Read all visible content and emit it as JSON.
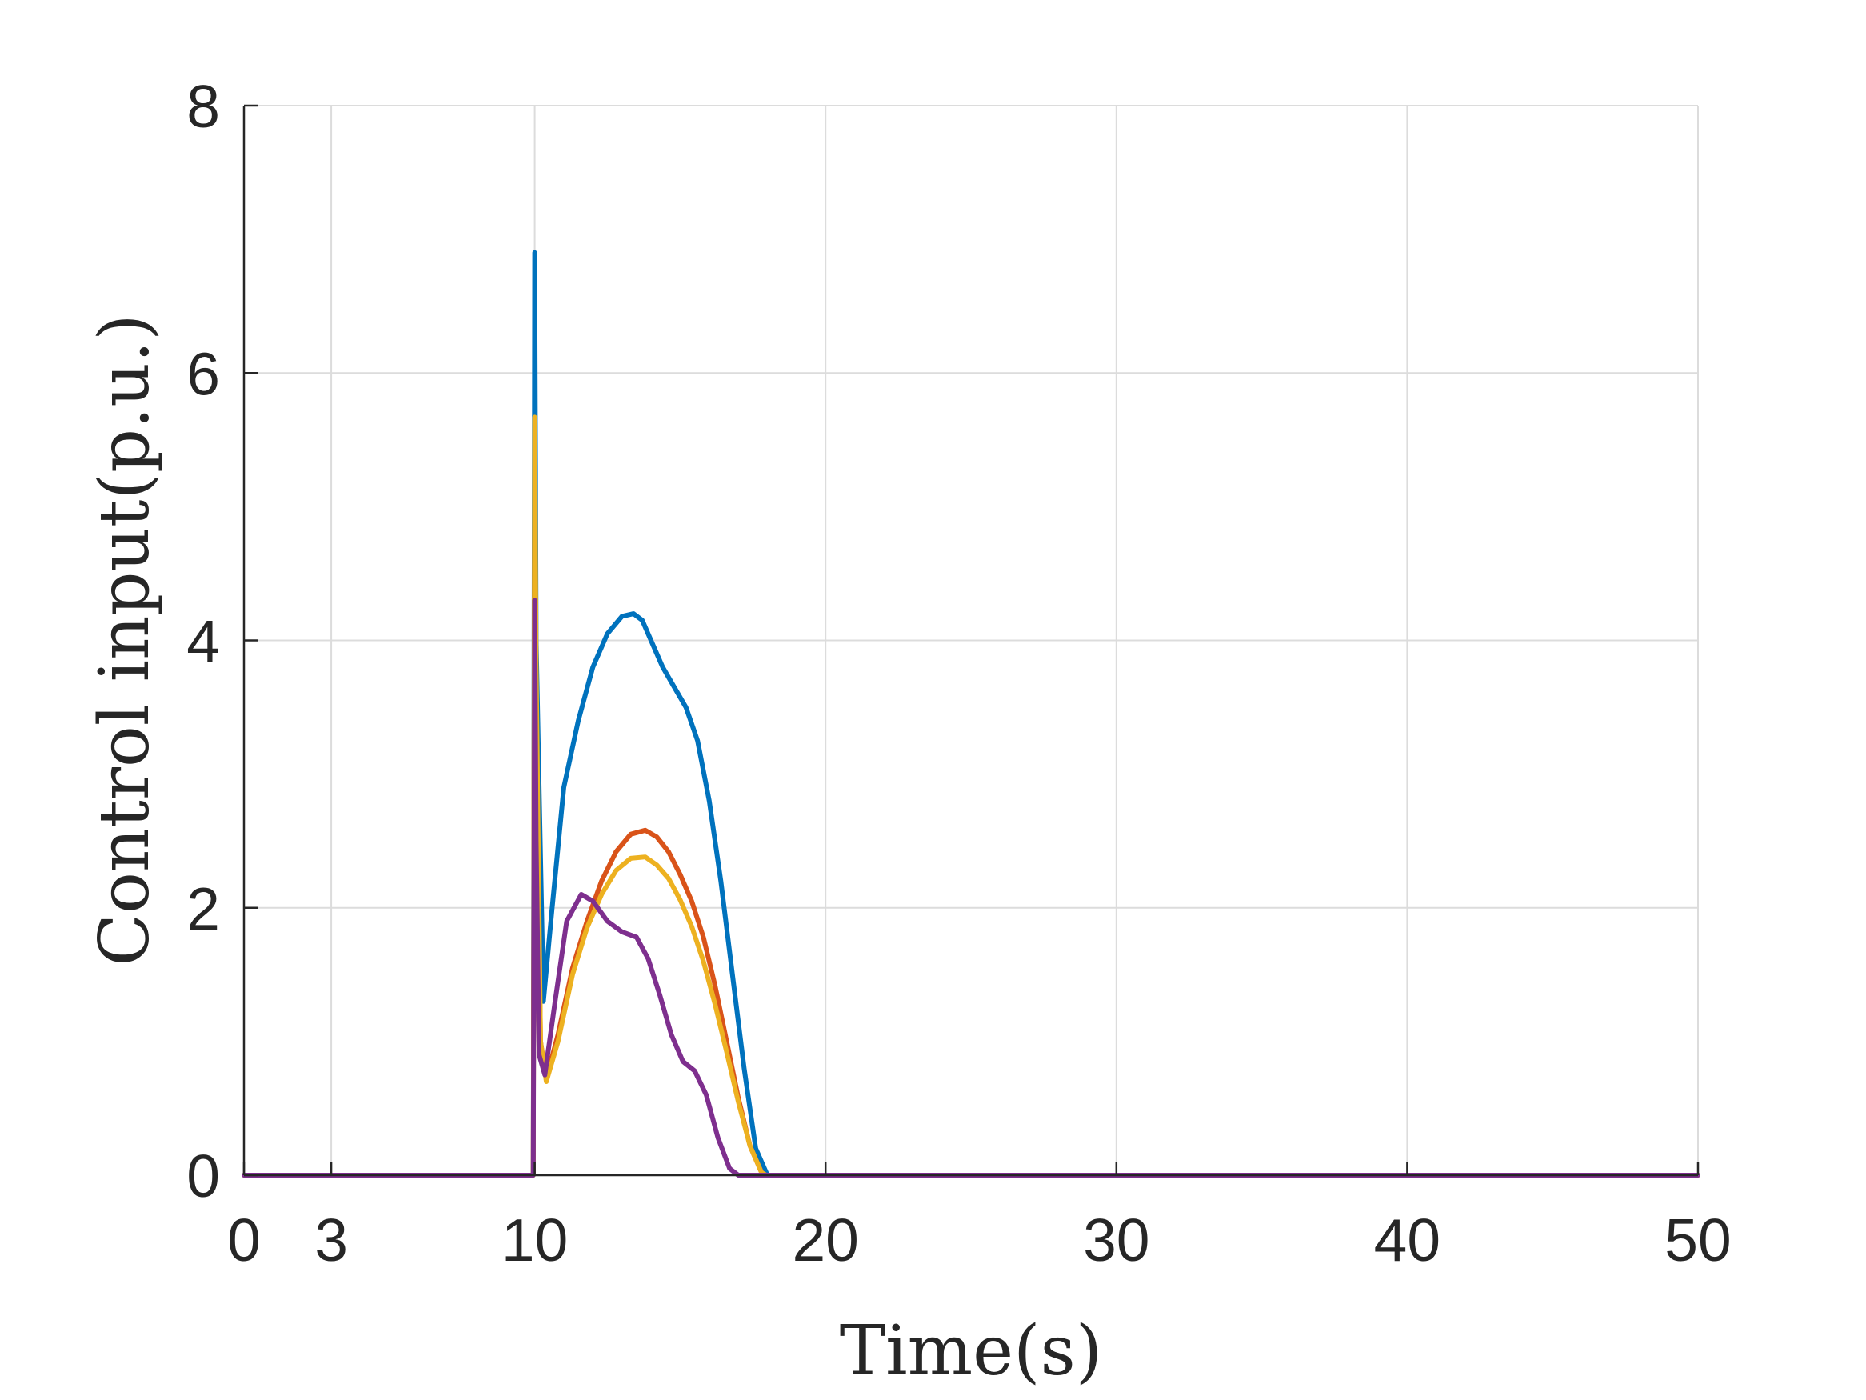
{
  "chart_data": {
    "type": "line",
    "xlabel": "Time(s)",
    "ylabel": "Control input(p.u.)",
    "xlim": [
      0,
      50
    ],
    "ylim": [
      0,
      8
    ],
    "xticks": [
      0,
      3,
      10,
      20,
      30,
      40,
      50
    ],
    "yticks": [
      0,
      2,
      4,
      6,
      8
    ],
    "grid": true,
    "series": [
      {
        "color": "#0072BD",
        "x": [
          0,
          9.95,
          10.0,
          10.05,
          10.3,
          10.6,
          11.0,
          11.5,
          12.0,
          12.5,
          13.0,
          13.4,
          13.7,
          14.0,
          14.4,
          14.8,
          15.2,
          15.6,
          16.0,
          16.4,
          16.8,
          17.2,
          17.6,
          18.0,
          18.1,
          50
        ],
        "y": [
          0,
          0,
          6.9,
          4.0,
          1.3,
          2.0,
          2.9,
          3.4,
          3.8,
          4.05,
          4.18,
          4.2,
          4.15,
          4.0,
          3.8,
          3.65,
          3.5,
          3.25,
          2.8,
          2.2,
          1.5,
          0.8,
          0.2,
          0.0,
          0,
          0
        ]
      },
      {
        "color": "#D95319",
        "x": [
          0,
          9.95,
          10.0,
          10.05,
          10.2,
          10.4,
          10.8,
          11.3,
          11.8,
          12.3,
          12.8,
          13.3,
          13.8,
          14.2,
          14.6,
          15.0,
          15.4,
          15.8,
          16.2,
          16.6,
          17.0,
          17.4,
          17.8,
          17.95,
          50
        ],
        "y": [
          0,
          0,
          5.2,
          3.5,
          1.0,
          0.72,
          1.05,
          1.55,
          1.9,
          2.2,
          2.42,
          2.55,
          2.58,
          2.53,
          2.42,
          2.25,
          2.05,
          1.78,
          1.42,
          1.0,
          0.58,
          0.22,
          0.02,
          0,
          0
        ]
      },
      {
        "color": "#EDB120",
        "x": [
          0,
          9.95,
          10.0,
          10.05,
          10.2,
          10.4,
          10.8,
          11.3,
          11.8,
          12.3,
          12.8,
          13.3,
          13.8,
          14.2,
          14.6,
          15.0,
          15.4,
          15.8,
          16.2,
          16.6,
          17.0,
          17.4,
          17.8,
          17.95,
          50
        ],
        "y": [
          0,
          0,
          5.67,
          3.8,
          1.0,
          0.7,
          1.0,
          1.5,
          1.85,
          2.1,
          2.28,
          2.37,
          2.38,
          2.32,
          2.22,
          2.06,
          1.86,
          1.6,
          1.28,
          0.92,
          0.55,
          0.22,
          0.02,
          0,
          0
        ]
      },
      {
        "color": "#7E2F8E",
        "x": [
          0,
          9.95,
          10.0,
          10.05,
          10.15,
          10.35,
          10.7,
          11.1,
          11.6,
          12.0,
          12.5,
          13.0,
          13.5,
          13.9,
          14.3,
          14.7,
          15.1,
          15.5,
          15.9,
          16.3,
          16.7,
          17.0,
          17.1,
          50
        ],
        "y": [
          0,
          0,
          4.3,
          2.5,
          0.9,
          0.75,
          1.3,
          1.9,
          2.1,
          2.05,
          1.9,
          1.82,
          1.78,
          1.62,
          1.35,
          1.05,
          0.85,
          0.78,
          0.6,
          0.28,
          0.05,
          0,
          0,
          0
        ]
      }
    ]
  }
}
